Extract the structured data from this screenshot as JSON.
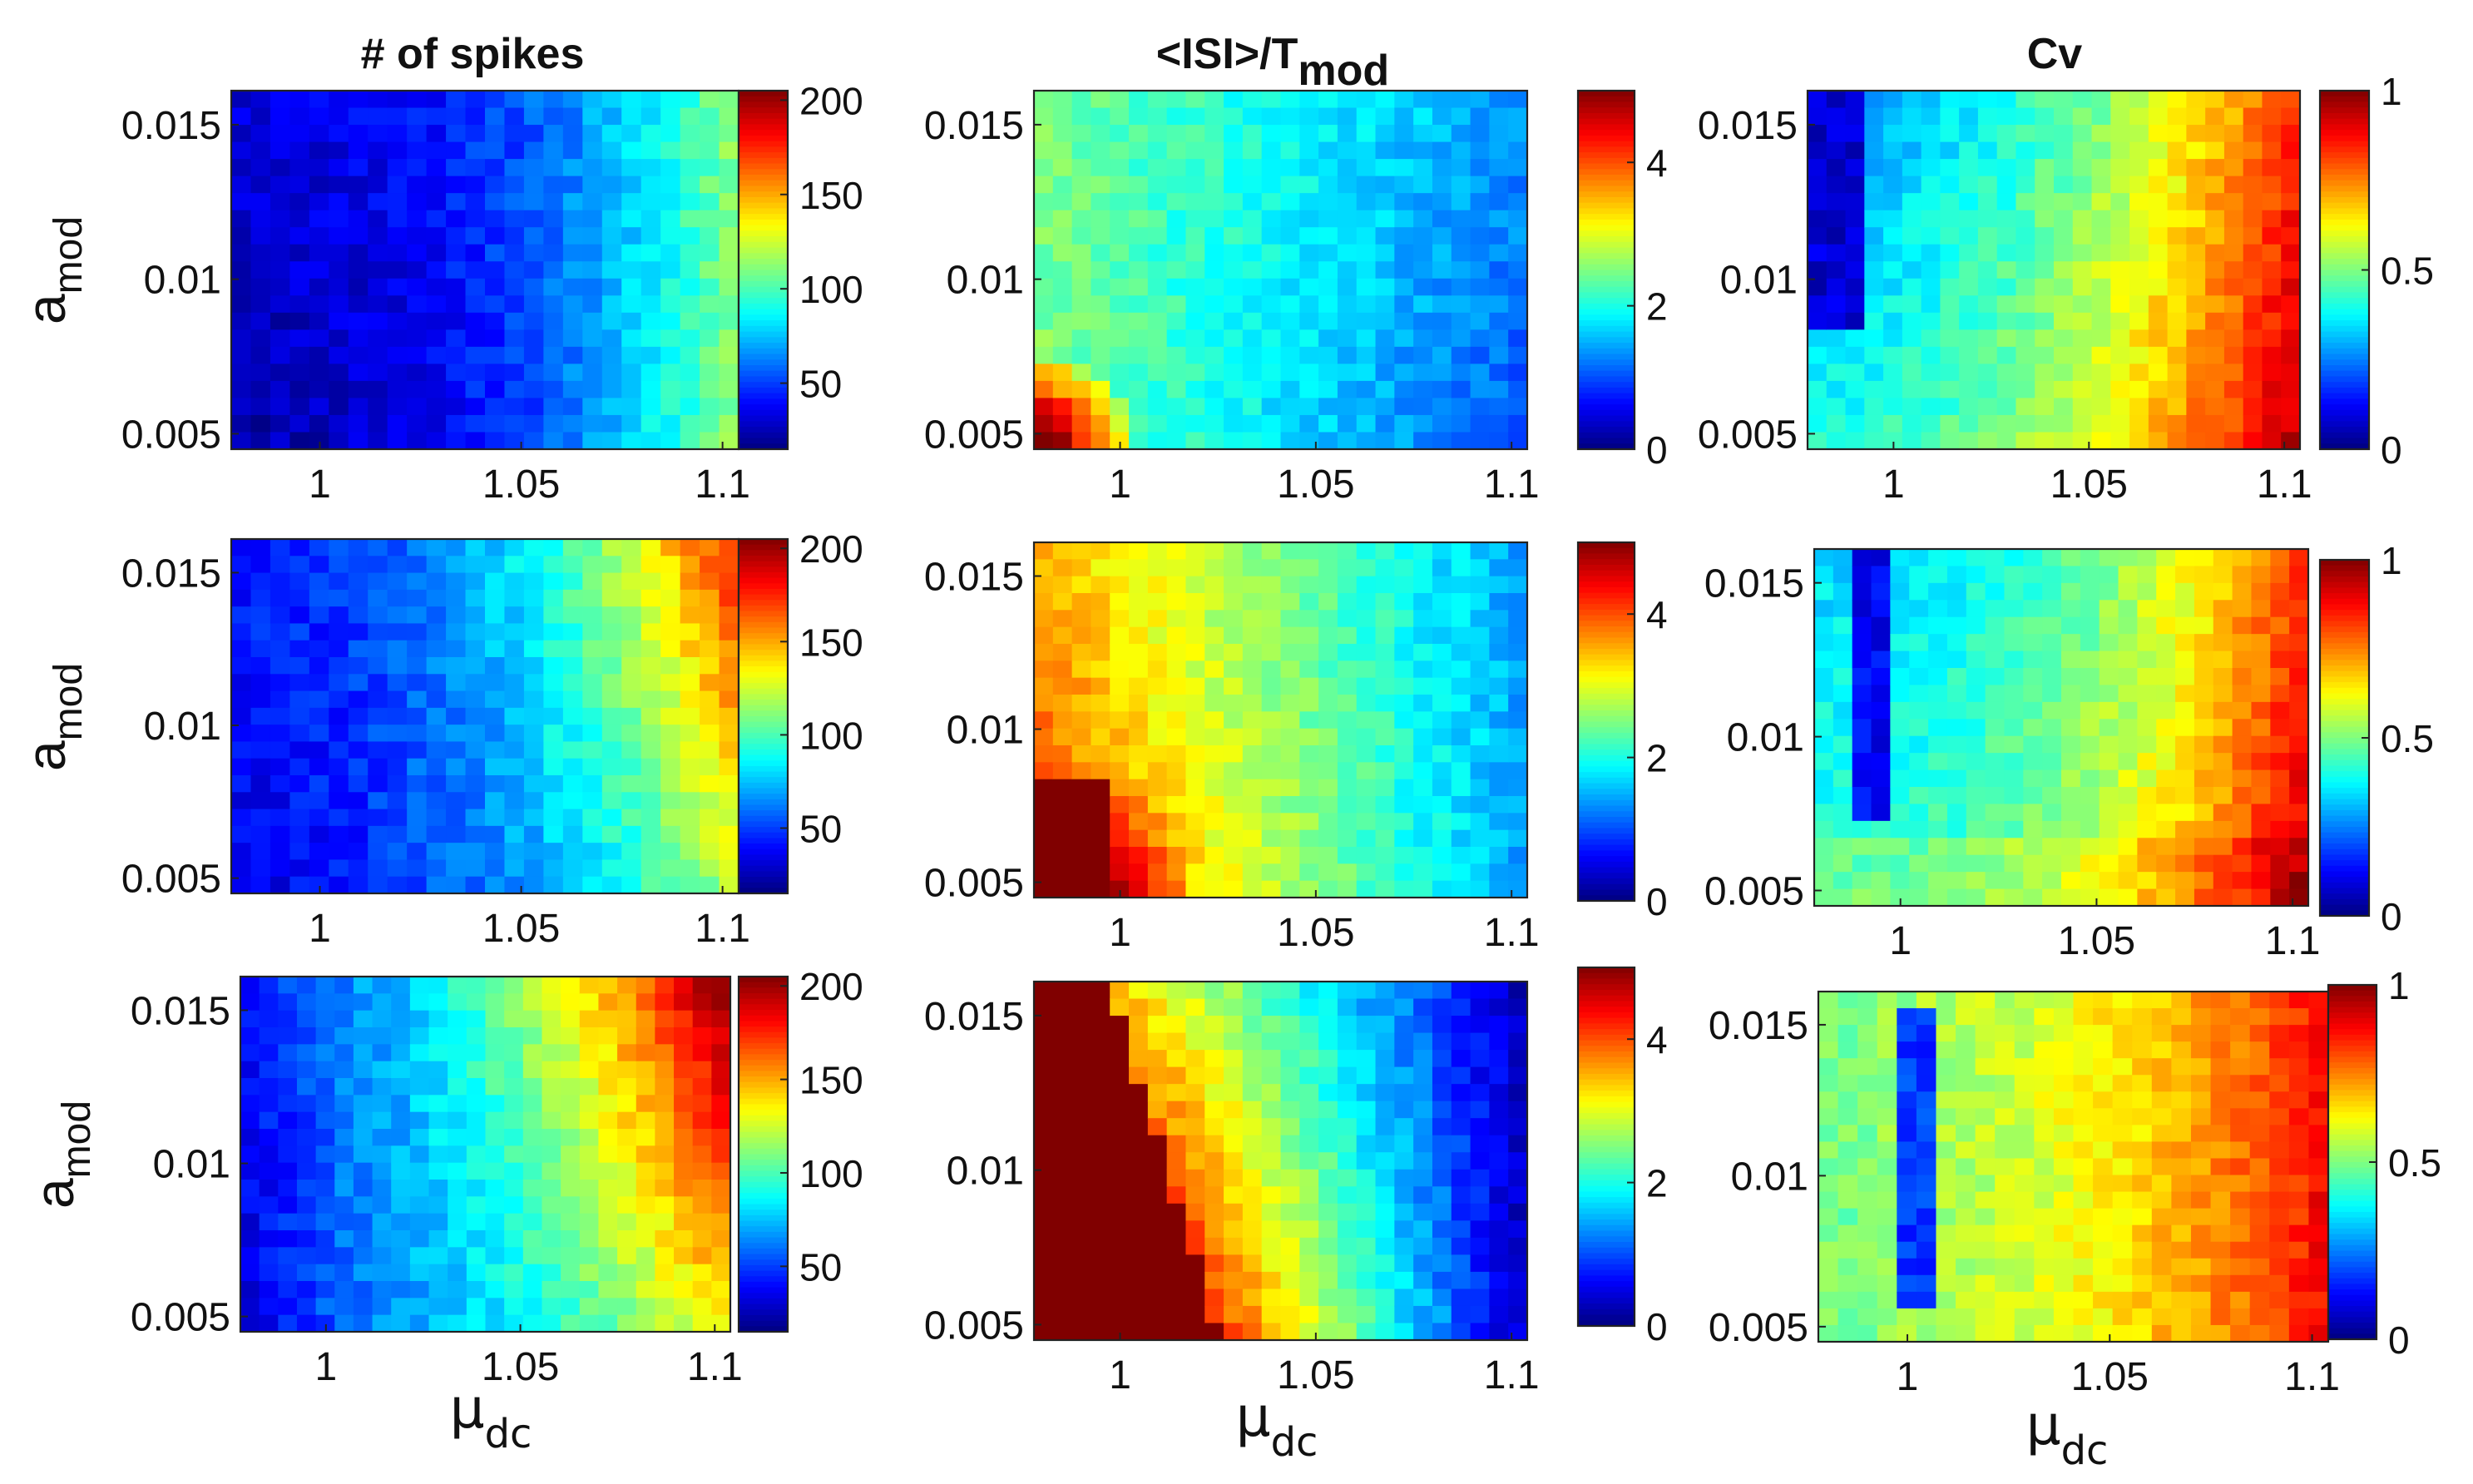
{
  "chart_data": {
    "type": "heatmap",
    "grid": {
      "columns": 26,
      "rows": 21
    },
    "column_titles": [
      "# of spikes",
      "<ISI>/T",
      "Cv"
    ],
    "column_title_subscripts": [
      "",
      "mod",
      ""
    ],
    "ylabel": {
      "main": "a",
      "sub": "mod"
    },
    "xlabel": {
      "main": "μ",
      "sub": "dc"
    },
    "x_range": [
      0.978,
      1.104
    ],
    "y_range": [
      0.0045,
      0.0161
    ],
    "x_ticks": [
      1,
      1.05,
      1.1
    ],
    "x_tick_labels": [
      "1",
      "1.05",
      "1.1"
    ],
    "y_ticks": [
      0.005,
      0.01,
      0.015
    ],
    "y_tick_labels": [
      "0.005",
      "0.01",
      "0.015"
    ],
    "colormap": "jet",
    "colorbars": [
      {
        "range": [
          15,
          205
        ],
        "ticks": [
          50,
          100,
          150,
          200
        ],
        "tick_labels": [
          "50",
          "100",
          "150",
          "200"
        ]
      },
      {
        "range": [
          0,
          5
        ],
        "ticks": [
          0,
          2,
          4
        ],
        "tick_labels": [
          "0",
          "2",
          "4"
        ]
      },
      {
        "range": [
          0,
          1
        ],
        "ticks": [
          0,
          0.5,
          1
        ],
        "tick_labels": [
          "0",
          "0.5",
          "1"
        ]
      }
    ],
    "panels": [
      {
        "row": 1,
        "column": 1,
        "metric": "# of spikes"
      },
      {
        "row": 1,
        "column": 2,
        "metric": "<ISI>/T_mod"
      },
      {
        "row": 1,
        "column": 3,
        "metric": "Cv"
      },
      {
        "row": 2,
        "column": 1,
        "metric": "# of spikes"
      },
      {
        "row": 2,
        "column": 2,
        "metric": "<ISI>/T_mod"
      },
      {
        "row": 2,
        "column": 3,
        "metric": "Cv"
      },
      {
        "row": 3,
        "column": 1,
        "metric": "# of spikes"
      },
      {
        "row": 3,
        "column": 2,
        "metric": "<ISI>/T_mod"
      },
      {
        "row": 3,
        "column": 3,
        "metric": "Cv"
      }
    ]
  }
}
